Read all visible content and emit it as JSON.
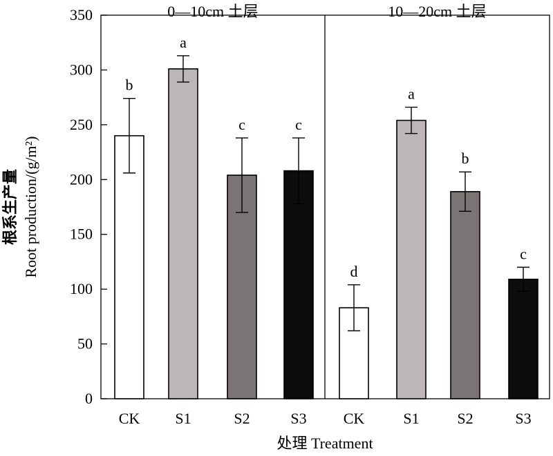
{
  "chart_data": {
    "type": "bar",
    "ylabel_cn": "根系生产量",
    "ylabel_en": "Root production/(g/m²)",
    "xlabel": "处理 Treatment",
    "ylim": [
      0,
      350
    ],
    "yticks": [
      0,
      50,
      100,
      150,
      200,
      250,
      300,
      350
    ],
    "grid": false,
    "legend": "none",
    "fill_colors": {
      "CK": "#ffffff",
      "S1": "#bdb6b8",
      "S2": "#7a7475",
      "S3": "#0d0d0d"
    },
    "panels": [
      {
        "title": "0—10cm 土层",
        "categories": [
          "CK",
          "S1",
          "S2",
          "S3"
        ],
        "values": [
          240,
          301,
          204,
          208
        ],
        "errors": [
          34,
          12,
          34,
          30
        ],
        "letters": [
          "b",
          "a",
          "c",
          "c"
        ]
      },
      {
        "title": "10—20cm 土层",
        "categories": [
          "CK",
          "S1",
          "S2",
          "S3"
        ],
        "values": [
          83,
          254,
          189,
          109
        ],
        "errors": [
          21,
          12,
          18,
          11
        ],
        "letters": [
          "d",
          "a",
          "b",
          "c"
        ]
      }
    ]
  }
}
